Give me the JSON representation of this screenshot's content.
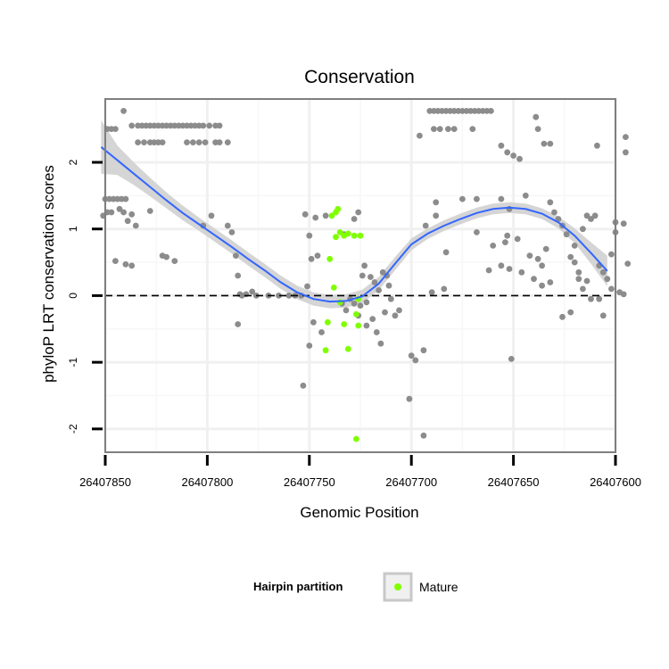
{
  "chart_data": {
    "type": "scatter",
    "title": "Conservation",
    "xlabel": "Genomic Position",
    "ylabel": "phyloP LRT conservation scores",
    "xlim": [
      26407600,
      26407850
    ],
    "x_reversed": true,
    "ylim": [
      -2.35,
      2.95
    ],
    "x_ticks": [
      26407850,
      26407800,
      26407750,
      26407700,
      26407650,
      26407600
    ],
    "x_tick_labels": [
      "26407850",
      "26407800",
      "26407750",
      "26407700",
      "26407650",
      "26407600"
    ],
    "y_ticks": [
      -2,
      -1,
      0,
      1,
      2
    ],
    "y_tick_labels": [
      "-2",
      "-1",
      "0",
      "1",
      "2"
    ],
    "reference_line": {
      "y": 0,
      "style": "dashed"
    },
    "legend": {
      "title": "Hairpin partition",
      "entries": [
        {
          "label": "Mature",
          "color": "#7FFF00"
        }
      ]
    },
    "colors": {
      "other": "#8c8c8c",
      "mature": "#7FFF00",
      "smooth": "#3366FF",
      "band": "#d0d0d0"
    },
    "series": [
      {
        "name": "Other",
        "color": "#8c8c8c",
        "points": [
          [
            26407849,
            2.5
          ],
          [
            26407847,
            2.5
          ],
          [
            26407845,
            2.5
          ],
          [
            26407841,
            2.77
          ],
          [
            26407850,
            1.45
          ],
          [
            26407848,
            1.45
          ],
          [
            26407846,
            1.45
          ],
          [
            26407844,
            1.45
          ],
          [
            26407842,
            1.45
          ],
          [
            26407840,
            1.45
          ],
          [
            26407851,
            1.2
          ],
          [
            26407849,
            1.25
          ],
          [
            26407847,
            1.25
          ],
          [
            26407843,
            1.3
          ],
          [
            26407841,
            1.25
          ],
          [
            26407839,
            1.12
          ],
          [
            26407837,
            1.22
          ],
          [
            26407835,
            1.05
          ],
          [
            26407845,
            0.52
          ],
          [
            26407840,
            0.47
          ],
          [
            26407837,
            0.45
          ],
          [
            26407837,
            2.55
          ],
          [
            26407834,
            2.55
          ],
          [
            26407832,
            2.55
          ],
          [
            26407830,
            2.55
          ],
          [
            26407828,
            2.55
          ],
          [
            26407826,
            2.55
          ],
          [
            26407824,
            2.55
          ],
          [
            26407822,
            2.55
          ],
          [
            26407820,
            2.55
          ],
          [
            26407818,
            2.55
          ],
          [
            26407816,
            2.55
          ],
          [
            26407814,
            2.55
          ],
          [
            26407812,
            2.55
          ],
          [
            26407810,
            2.55
          ],
          [
            26407808,
            2.55
          ],
          [
            26407806,
            2.55
          ],
          [
            26407804,
            2.55
          ],
          [
            26407802,
            2.55
          ],
          [
            26407799,
            2.55
          ],
          [
            26407796,
            2.55
          ],
          [
            26407794,
            2.55
          ],
          [
            26407834,
            2.3
          ],
          [
            26407831,
            2.3
          ],
          [
            26407828,
            2.3
          ],
          [
            26407826,
            2.3
          ],
          [
            26407824,
            2.3
          ],
          [
            26407822,
            2.3
          ],
          [
            26407810,
            2.3
          ],
          [
            26407807,
            2.3
          ],
          [
            26407804,
            2.3
          ],
          [
            26407801,
            2.3
          ],
          [
            26407796,
            2.3
          ],
          [
            26407794,
            2.3
          ],
          [
            26407790,
            2.3
          ],
          [
            26407828,
            1.27
          ],
          [
            26407798,
            1.2
          ],
          [
            26407802,
            1.05
          ],
          [
            26407790,
            1.05
          ],
          [
            26407788,
            0.95
          ],
          [
            26407822,
            0.6
          ],
          [
            26407820,
            0.58
          ],
          [
            26407816,
            0.52
          ],
          [
            26407786,
            0.6
          ],
          [
            26407785,
            0.3
          ],
          [
            26407784,
            0.02
          ],
          [
            26407783,
            0.0
          ],
          [
            26407781,
            0.02
          ],
          [
            26407778,
            0.06
          ],
          [
            26407776,
            0.0
          ],
          [
            26407770,
            0.0
          ],
          [
            26407765,
            0.0
          ],
          [
            26407760,
            0.0
          ],
          [
            26407757,
            0.0
          ],
          [
            26407754,
            0.0
          ],
          [
            26407785,
            -0.43
          ],
          [
            26407752,
            1.22
          ],
          [
            26407750,
            0.9
          ],
          [
            26407749,
            0.55
          ],
          [
            26407746,
            0.6
          ],
          [
            26407751,
            0.14
          ],
          [
            26407750,
            -0.75
          ],
          [
            26407748,
            -0.4
          ],
          [
            26407744,
            -0.55
          ],
          [
            26407753,
            -1.35
          ],
          [
            26407747,
            1.17
          ],
          [
            26407742,
            1.2
          ],
          [
            26407733,
            0.92
          ],
          [
            26407728,
            1.15
          ],
          [
            26407726,
            1.25
          ],
          [
            26407723,
            0.45
          ],
          [
            26407734,
            -0.12
          ],
          [
            26407730,
            -0.05
          ],
          [
            26407732,
            -0.22
          ],
          [
            26407728,
            -0.12
          ],
          [
            26407726,
            -0.3
          ],
          [
            26407725,
            -0.15
          ],
          [
            26407724,
            0.3
          ],
          [
            26407722,
            -0.45
          ],
          [
            26407720,
            0.28
          ],
          [
            26407718,
            0.2
          ],
          [
            26407716,
            0.08
          ],
          [
            26407714,
            0.35
          ],
          [
            26407712,
            0.3
          ],
          [
            26407710,
            -0.05
          ],
          [
            26407708,
            -0.3
          ],
          [
            26407706,
            -0.22
          ],
          [
            26407719,
            -0.35
          ],
          [
            26407717,
            -0.55
          ],
          [
            26407715,
            -0.72
          ],
          [
            26407713,
            -0.25
          ],
          [
            26407711,
            0.15
          ],
          [
            26407722,
            -0.1
          ],
          [
            26407700,
            -0.9
          ],
          [
            26407698,
            -0.97
          ],
          [
            26407694,
            -0.82
          ],
          [
            26407701,
            -1.55
          ],
          [
            26407694,
            -2.1
          ],
          [
            26407693,
            1.05
          ],
          [
            26407690,
            0.05
          ],
          [
            26407688,
            1.2
          ],
          [
            26407684,
            0.1
          ],
          [
            26407683,
            0.65
          ],
          [
            26407688,
            1.4
          ],
          [
            26407696,
            2.4
          ],
          [
            26407691,
            2.77
          ],
          [
            26407689,
            2.77
          ],
          [
            26407687,
            2.77
          ],
          [
            26407685,
            2.77
          ],
          [
            26407683,
            2.77
          ],
          [
            26407681,
            2.77
          ],
          [
            26407679,
            2.77
          ],
          [
            26407677,
            2.77
          ],
          [
            26407675,
            2.77
          ],
          [
            26407673,
            2.77
          ],
          [
            26407671,
            2.77
          ],
          [
            26407669,
            2.77
          ],
          [
            26407667,
            2.77
          ],
          [
            26407665,
            2.77
          ],
          [
            26407663,
            2.77
          ],
          [
            26407661,
            2.77
          ],
          [
            26407689,
            2.5
          ],
          [
            26407686,
            2.5
          ],
          [
            26407682,
            2.5
          ],
          [
            26407679,
            2.5
          ],
          [
            26407670,
            2.5
          ],
          [
            26407675,
            1.45
          ],
          [
            26407668,
            1.45
          ],
          [
            26407656,
            1.45
          ],
          [
            26407652,
            1.3
          ],
          [
            26407668,
            0.95
          ],
          [
            26407660,
            0.75
          ],
          [
            26407662,
            0.38
          ],
          [
            26407656,
            0.45
          ],
          [
            26407654,
            0.8
          ],
          [
            26407652,
            0.4
          ],
          [
            26407651,
            -0.95
          ],
          [
            26407653,
            0.9
          ],
          [
            26407648,
            0.85
          ],
          [
            26407646,
            0.35
          ],
          [
            26407644,
            1.5
          ],
          [
            26407656,
            2.25
          ],
          [
            26407653,
            2.15
          ],
          [
            26407650,
            2.1
          ],
          [
            26407647,
            2.05
          ],
          [
            26407639,
            2.68
          ],
          [
            26407638,
            2.5
          ],
          [
            26407635,
            2.28
          ],
          [
            26407632,
            2.28
          ],
          [
            26407609,
            2.25
          ],
          [
            26407642,
            0.6
          ],
          [
            26407640,
            0.25
          ],
          [
            26407638,
            0.55
          ],
          [
            26407636,
            0.45
          ],
          [
            26407634,
            0.7
          ],
          [
            26407632,
            1.4
          ],
          [
            26407630,
            1.25
          ],
          [
            26407628,
            1.15
          ],
          [
            26407626,
            1.05
          ],
          [
            26407624,
            0.92
          ],
          [
            26407622,
            0.58
          ],
          [
            26407620,
            0.5
          ],
          [
            26407618,
            0.35
          ],
          [
            26407616,
            0.1
          ],
          [
            26407614,
            0.22
          ],
          [
            26407612,
            -0.05
          ],
          [
            26407618,
            0.25
          ],
          [
            26407622,
            -0.25
          ],
          [
            26407626,
            -0.32
          ],
          [
            26407632,
            0.2
          ],
          [
            26407636,
            0.15
          ],
          [
            26407612,
            1.15
          ],
          [
            26407610,
            1.2
          ],
          [
            26407608,
            0.45
          ],
          [
            26407606,
            0.35
          ],
          [
            26407604,
            0.25
          ],
          [
            26407602,
            0.1
          ],
          [
            26407608,
            -0.05
          ],
          [
            26407606,
            -0.3
          ],
          [
            26407600,
            1.1
          ],
          [
            26407600,
            0.95
          ],
          [
            26407602,
            0.62
          ],
          [
            26407598,
            0.05
          ],
          [
            26407596,
            0.02
          ],
          [
            26407595,
            2.38
          ],
          [
            26407595,
            2.15
          ],
          [
            26407596,
            1.08
          ],
          [
            26407594,
            0.48
          ],
          [
            26407614,
            1.2
          ],
          [
            26407616,
            1.0
          ],
          [
            26407620,
            0.75
          ]
        ]
      },
      {
        "name": "Mature",
        "color": "#7FFF00",
        "points": [
          [
            26407736,
            1.3
          ],
          [
            26407737,
            1.25
          ],
          [
            26407739,
            1.2
          ],
          [
            26407735,
            0.95
          ],
          [
            26407733,
            0.9
          ],
          [
            26407731,
            0.93
          ],
          [
            26407728,
            0.9
          ],
          [
            26407725,
            0.9
          ],
          [
            26407737,
            0.88
          ],
          [
            26407740,
            0.55
          ],
          [
            26407738,
            0.12
          ],
          [
            26407735,
            -0.1
          ],
          [
            26407726,
            -0.05
          ],
          [
            26407727,
            -0.28
          ],
          [
            26407741,
            -0.4
          ],
          [
            26407733,
            -0.43
          ],
          [
            26407726,
            -0.45
          ],
          [
            26407731,
            -0.8
          ],
          [
            26407742,
            -0.82
          ],
          [
            26407727,
            -2.15
          ]
        ]
      }
    ],
    "smooth": {
      "method": "loess",
      "x": [
        26407604,
        26407612,
        26407620,
        26407628,
        26407636,
        26407644,
        26407652,
        26407660,
        26407668,
        26407676,
        26407684,
        26407692,
        26407700,
        26407708,
        26407716,
        26407724,
        26407732,
        26407740,
        26407748,
        26407756,
        26407764,
        26407772,
        26407780,
        26407788,
        26407796,
        26407804,
        26407812,
        26407820,
        26407828,
        26407836,
        26407844,
        26407852
      ],
      "y": [
        0.37,
        0.64,
        0.9,
        1.1,
        1.23,
        1.3,
        1.32,
        1.3,
        1.24,
        1.15,
        1.05,
        0.93,
        0.77,
        0.48,
        0.18,
        -0.01,
        -0.08,
        -0.09,
        -0.05,
        0.05,
        0.2,
        0.38,
        0.55,
        0.73,
        0.9,
        1.07,
        1.24,
        1.43,
        1.63,
        1.83,
        2.03,
        2.23
      ],
      "ci_half_width": [
        0.23,
        0.16,
        0.11,
        0.09,
        0.08,
        0.08,
        0.08,
        0.08,
        0.08,
        0.08,
        0.08,
        0.08,
        0.09,
        0.1,
        0.1,
        0.1,
        0.1,
        0.1,
        0.1,
        0.1,
        0.1,
        0.1,
        0.1,
        0.1,
        0.1,
        0.1,
        0.11,
        0.12,
        0.14,
        0.17,
        0.22,
        0.4
      ]
    }
  }
}
